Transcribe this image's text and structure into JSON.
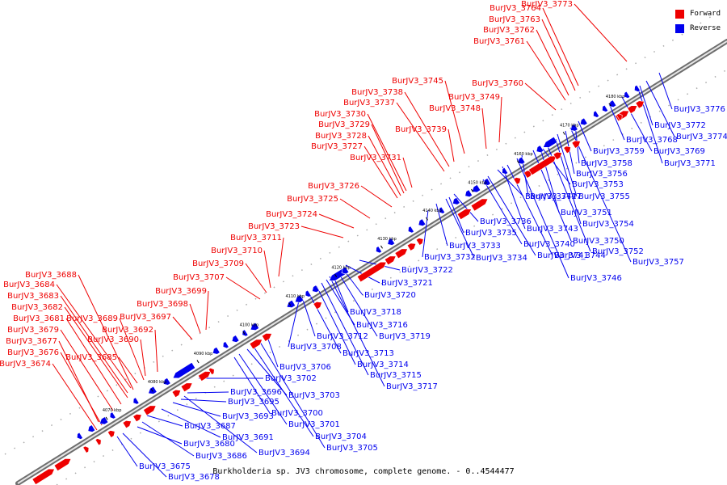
{
  "caption": "Burkholderia sp. JV3 chromosome, complete genome. - 0..4544477",
  "legend": [
    {
      "label": "Forward",
      "color": "#ee0000"
    },
    {
      "label": "Reverse",
      "color": "#0000ee"
    }
  ],
  "colors": {
    "forward": "#ee0000",
    "reverse": "#0000ee",
    "backbone": "#8c8c8c"
  },
  "ticks": [
    "4070 kbp",
    "4080 kbp",
    "4090 kbp",
    "4100 kbp",
    "4110 kbp",
    "4120 kbp",
    "4130 kbp",
    "4140 kbp",
    "4150 kbp",
    "4160 kbp",
    "4170 kbp",
    "4180 kbp"
  ],
  "forward_labels": [
    "BurJV3_3674",
    "BurJV3_3676",
    "BurJV3_3677",
    "BurJV3_3679",
    "BurJV3_3681",
    "BurJV3_3682",
    "BurJV3_3683",
    "BurJV3_3684",
    "BurJV3_3688",
    "BurJV3_3685",
    "BurJV3_3689",
    "BurJV3_3690",
    "BurJV3_3692",
    "BurJV3_3697",
    "BurJV3_3698",
    "BurJV3_3699",
    "BurJV3_3707",
    "BurJV3_3709",
    "BurJV3_3710",
    "BurJV3_3711",
    "BurJV3_3723",
    "BurJV3_3724",
    "BurJV3_3725",
    "BurJV3_3726",
    "BurJV3_3727",
    "BurJV3_3728",
    "BurJV3_3729",
    "BurJV3_3730",
    "BurJV3_3731",
    "BurJV3_3737",
    "BurJV3_3738",
    "BurJV3_3739",
    "BurJV3_3745",
    "BurJV3_3748",
    "BurJV3_3749",
    "BurJV3_3760",
    "BurJV3_3761",
    "BurJV3_3762",
    "BurJV3_3763",
    "BurJV3_3764",
    "BurJV3_3773"
  ],
  "reverse_labels": [
    "BurJV3_3675",
    "BurJV3_3678",
    "BurJV3_3680",
    "BurJV3_3686",
    "BurJV3_3687",
    "BurJV3_3691",
    "BurJV3_3693",
    "BurJV3_3694",
    "BurJV3_3695",
    "BurJV3_3696",
    "BurJV3_3700",
    "BurJV3_3701",
    "BurJV3_3702",
    "BurJV3_3703",
    "BurJV3_3704",
    "BurJV3_3705",
    "BurJV3_3706",
    "BurJV3_3708",
    "BurJV3_3712",
    "BurJV3_3713",
    "BurJV3_3714",
    "BurJV3_3715",
    "BurJV3_3716",
    "BurJV3_3717",
    "BurJV3_3718",
    "BurJV3_3719",
    "BurJV3_3720",
    "BurJV3_3721",
    "BurJV3_3722",
    "BurJV3_3732",
    "BurJV3_3733",
    "BurJV3_3734",
    "BurJV3_3735",
    "BurJV3_3736",
    "BurJV3_3740",
    "BurJV3_3741",
    "BurJV3_3742",
    "BurJV3_3743",
    "BurJV3_3744",
    "BurJV3_3746",
    "BurJV3_3747",
    "BurJV3_3750",
    "BurJV3_3751",
    "BurJV3_3752",
    "BurJV3_3753",
    "BurJV3_3754",
    "BurJV3_3755",
    "BurJV3_3756",
    "BurJV3_3757",
    "BurJV3_3758",
    "BurJV3_3759",
    "BurJV3_3768",
    "BurJV3_3769",
    "BurJV3_3771",
    "BurJV3_3772",
    "BurJV3_3774",
    "BurJV3_3776"
  ]
}
